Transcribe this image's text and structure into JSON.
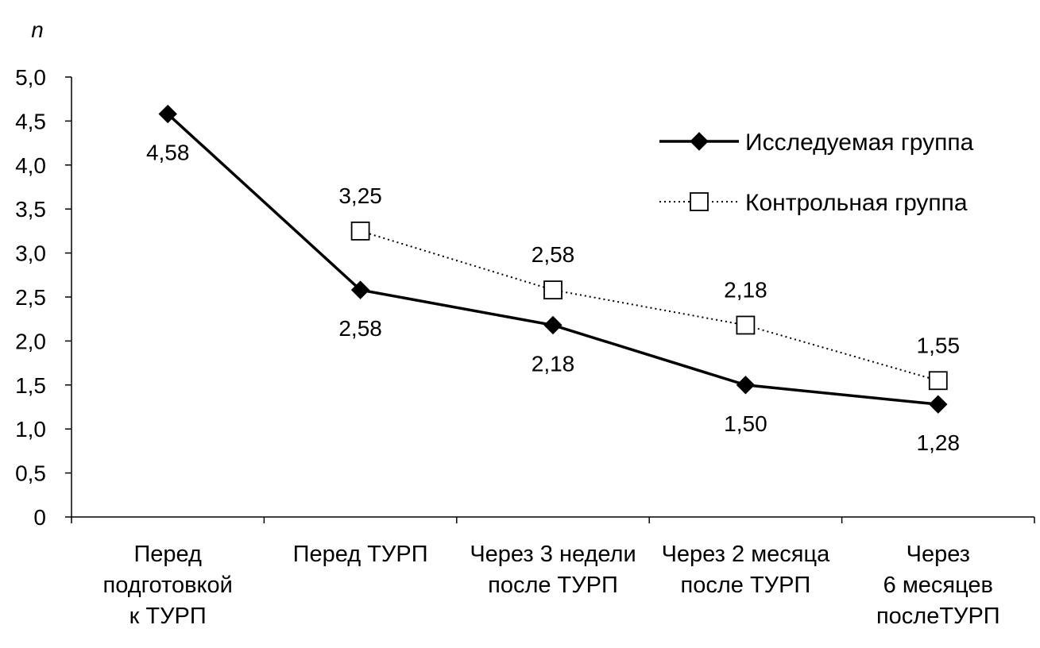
{
  "chart_data": {
    "type": "line",
    "ylabel": "n",
    "ylim": [
      0,
      5
    ],
    "yticks": [
      "0",
      "0,5",
      "1,0",
      "1,5",
      "2,0",
      "2,5",
      "3,0",
      "3,5",
      "4,0",
      "4,5",
      "5,0"
    ],
    "categories": [
      [
        "Перед",
        "подготовкой",
        "к ТУРП"
      ],
      [
        "Перед ТУРП"
      ],
      [
        "Через 3 недели",
        "после ТУРП"
      ],
      [
        "Через 2 месяца",
        "после ТУРП"
      ],
      [
        "Через",
        "6 месяцев",
        "послеТУРП"
      ]
    ],
    "series": [
      {
        "name": "Исследуемая группа",
        "marker": "filled-diamond",
        "line": "solid",
        "color": "#000000",
        "values": [
          4.58,
          2.58,
          2.18,
          1.5,
          1.28
        ],
        "labels": [
          "4,58",
          "2,58",
          "2,18",
          "1,50",
          "1,28"
        ]
      },
      {
        "name": "Контрольная группа",
        "marker": "open-square",
        "line": "dotted",
        "color": "#000000",
        "values": [
          null,
          3.25,
          2.58,
          2.18,
          1.55
        ],
        "labels": [
          null,
          "3,25",
          "2,58",
          "2,18",
          "1,55"
        ]
      }
    ],
    "legend": "top-right",
    "grid": false
  }
}
